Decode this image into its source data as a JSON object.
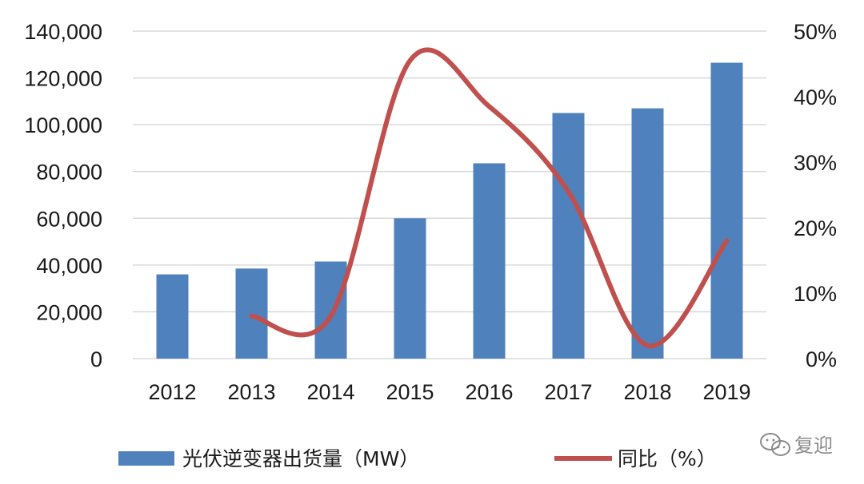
{
  "chart_data": {
    "type": "bar",
    "categories": [
      "2012",
      "2013",
      "2014",
      "2015",
      "2016",
      "2017",
      "2018",
      "2019"
    ],
    "series": [
      {
        "name": "光伏逆变器出货量（MW）",
        "type": "bar",
        "axis": "left",
        "values": [
          36000,
          38500,
          41500,
          60000,
          83500,
          105000,
          107000,
          126500
        ]
      },
      {
        "name": "同比（%）",
        "type": "line",
        "axis": "right",
        "values": [
          null,
          6.5,
          6.5,
          45.5,
          38.5,
          25.5,
          2.0,
          18.0
        ]
      }
    ],
    "y_left": {
      "min": 0,
      "max": 140000,
      "ticks": [
        0,
        20000,
        40000,
        60000,
        80000,
        100000,
        120000,
        140000
      ],
      "tick_labels": [
        "0",
        "20,000",
        "40,000",
        "60,000",
        "80,000",
        "100,000",
        "120,000",
        "140,000"
      ]
    },
    "y_right": {
      "min": 0,
      "max": 50,
      "ticks": [
        0,
        10,
        20,
        30,
        40,
        50
      ],
      "tick_labels": [
        "0%",
        "10%",
        "20%",
        "30%",
        "40%",
        "50%"
      ]
    },
    "grid": true,
    "legend_position": "bottom",
    "colors": {
      "bar": "#4f81bd",
      "line": "#c0504d",
      "grid": "#d9d9d9"
    }
  },
  "watermark": {
    "text": "复迎",
    "icon": "wechat-icon"
  }
}
